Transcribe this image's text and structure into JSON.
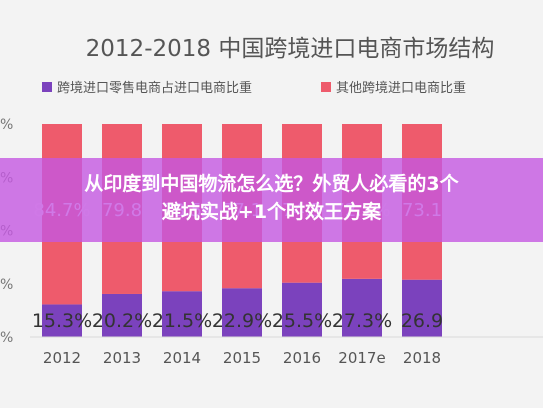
{
  "chart_data": {
    "type": "bar",
    "stacked": true,
    "percent": true,
    "title": "2012-2018 中国跨境进口电商市场结构",
    "categories": [
      "2012",
      "2013",
      "2014",
      "2015",
      "2016",
      "2017e",
      "2018"
    ],
    "categories_visible": [
      "2012",
      "2013",
      "2014",
      "2015",
      "2016",
      "2017e",
      "2018"
    ],
    "series": [
      {
        "name": "跨境进口零售电商占进口电商比重",
        "color": "#7b42bd",
        "values": [
          15.3,
          20.2,
          21.5,
          22.9,
          25.5,
          27.3,
          26.9
        ],
        "labels": [
          "15.3%",
          "20.2%",
          "21.5%",
          "22.9%",
          "25.5%",
          "27.3%",
          "26.9"
        ]
      },
      {
        "name": "其他跨境进口电商比重",
        "color": "#ee5b6c",
        "values": [
          84.7,
          79.8,
          78.5,
          77.1,
          74.5,
          72.7,
          73.1
        ],
        "labels": [
          "84.7%",
          "79.8",
          "78.5",
          "77.1",
          "74.5",
          "72.7%",
          "73.1"
        ]
      }
    ],
    "ylim": [
      0,
      100
    ],
    "y_ticks": [
      "%",
      "%",
      "%",
      "%",
      "%"
    ],
    "legend_position": "top",
    "grid": false
  },
  "overlay": {
    "headline_line1": "从印度到中国物流怎么选？外贸人必看的3个",
    "headline_line2": "避坑实战+1个时效王方案"
  }
}
